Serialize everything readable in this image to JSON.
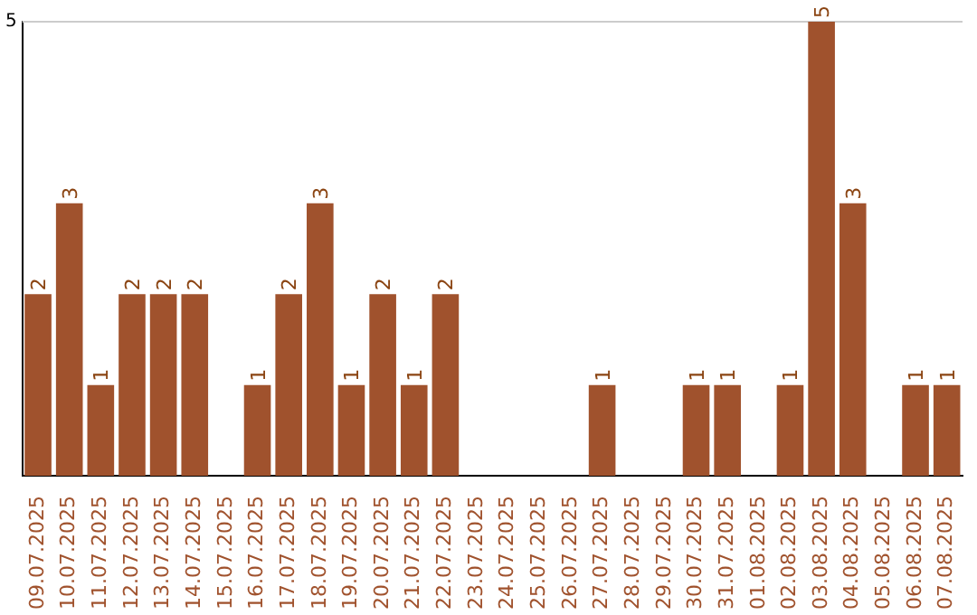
{
  "chart_data": {
    "type": "bar",
    "categories": [
      "09.07.2025",
      "10.07.2025",
      "11.07.2025",
      "12.07.2025",
      "13.07.2025",
      "14.07.2025",
      "15.07.2025",
      "16.07.2025",
      "17.07.2025",
      "18.07.2025",
      "19.07.2025",
      "20.07.2025",
      "21.07.2025",
      "22.07.2025",
      "23.07.2025",
      "24.07.2025",
      "25.07.2025",
      "26.07.2025",
      "27.07.2025",
      "28.07.2025",
      "29.07.2025",
      "30.07.2025",
      "31.07.2025",
      "01.08.2025",
      "02.08.2025",
      "03.08.2025",
      "04.08.2025",
      "05.08.2025",
      "06.08.2025",
      "07.08.2025"
    ],
    "values": [
      2,
      3,
      1,
      2,
      2,
      2,
      0,
      1,
      2,
      3,
      1,
      2,
      1,
      2,
      0,
      0,
      0,
      0,
      1,
      0,
      0,
      1,
      1,
      0,
      1,
      5,
      3,
      0,
      1,
      1
    ],
    "value_labels": [
      "2",
      "3",
      "1",
      "2",
      "2",
      "2",
      null,
      "1",
      "2",
      "3",
      "1",
      "2",
      "1",
      "2",
      null,
      null,
      null,
      null,
      "1",
      null,
      null,
      "1",
      "1",
      null,
      "1",
      "5",
      "3",
      null,
      "1",
      "1"
    ],
    "color": "#a0522d",
    "ylim": [
      0,
      5
    ],
    "yticks": [
      5
    ],
    "ref_lines": [
      {
        "axis": "y",
        "value": 5,
        "color": "#cccccc"
      }
    ],
    "legend": false
  }
}
